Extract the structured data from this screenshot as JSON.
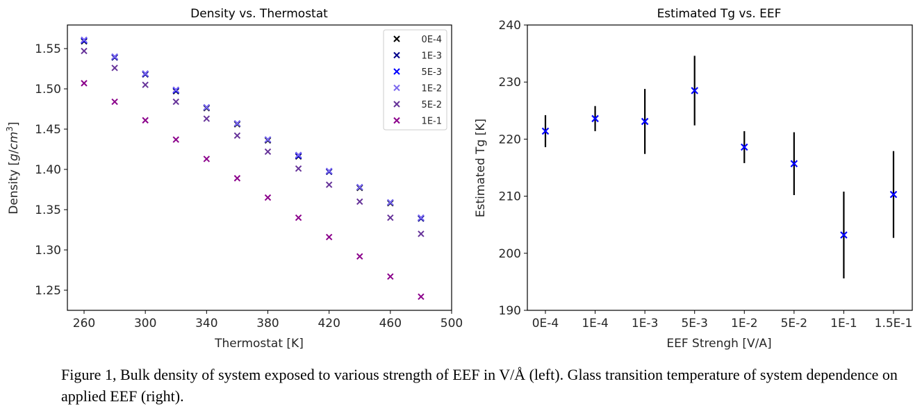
{
  "chart_data": [
    {
      "type": "scatter",
      "title": "Density vs. Thermostat",
      "xlabel": "Thermostat [K]",
      "ylabel": "Density [g/cm³]",
      "xlim": [
        250,
        500
      ],
      "ylim": [
        1.225,
        1.58
      ],
      "xticks": [
        260,
        300,
        340,
        380,
        420,
        460,
        500
      ],
      "yticks": [
        1.25,
        1.3,
        1.35,
        1.4,
        1.45,
        1.5,
        1.55
      ],
      "ytick_labels": [
        "1.25",
        "1.30",
        "1.35",
        "1.40",
        "1.45",
        "1.50",
        "1.55"
      ],
      "legend_position": "top-right",
      "marker": "x",
      "x": [
        260,
        280,
        300,
        320,
        340,
        360,
        380,
        400,
        420,
        440,
        460,
        480
      ],
      "series": [
        {
          "name": "0E-4",
          "color": "#000000",
          "values": [
            1.559,
            1.539,
            1.518,
            1.497,
            1.476,
            1.456,
            1.436,
            1.416,
            1.397,
            1.377,
            1.358,
            1.339
          ]
        },
        {
          "name": "1E-3",
          "color": "#00008b",
          "values": [
            1.56,
            1.539,
            1.518,
            1.498,
            1.477,
            1.457,
            1.437,
            1.417,
            1.397,
            1.378,
            1.359,
            1.339
          ]
        },
        {
          "name": "5E-3",
          "color": "#0000ff",
          "values": [
            1.56,
            1.54,
            1.519,
            1.498,
            1.477,
            1.457,
            1.437,
            1.417,
            1.398,
            1.378,
            1.359,
            1.34
          ]
        },
        {
          "name": "1E-2",
          "color": "#7b68ee",
          "values": [
            1.561,
            1.54,
            1.519,
            1.499,
            1.477,
            1.457,
            1.437,
            1.418,
            1.398,
            1.378,
            1.359,
            1.34
          ]
        },
        {
          "name": "5E-2",
          "color": "#663399",
          "values": [
            1.547,
            1.526,
            1.505,
            1.484,
            1.463,
            1.442,
            1.422,
            1.401,
            1.381,
            1.36,
            1.34,
            1.32
          ]
        },
        {
          "name": "1E-1",
          "color": "#8b008b",
          "values": [
            1.507,
            1.484,
            1.461,
            1.437,
            1.413,
            1.389,
            1.365,
            1.34,
            1.316,
            1.292,
            1.267,
            1.242
          ]
        }
      ]
    },
    {
      "type": "scatter",
      "subtype": "errorbar",
      "title": "Estimated Tg vs. EEF",
      "xlabel": "EEF Strengh [V/A]",
      "ylabel": "Estimated Tg [K]",
      "ylim": [
        190,
        240
      ],
      "yticks": [
        190,
        200,
        210,
        220,
        230,
        240
      ],
      "categories": [
        "0E-4",
        "1E-4",
        "1E-3",
        "5E-3",
        "1E-2",
        "5E-2",
        "1E-1",
        "1.5E-1"
      ],
      "marker": "x",
      "marker_color": "#0000ff",
      "errorbar_color": "#000000",
      "values": [
        221.4,
        223.6,
        223.1,
        228.5,
        218.6,
        215.7,
        203.2,
        210.3
      ],
      "errors": [
        2.8,
        2.2,
        5.7,
        6.1,
        2.8,
        5.5,
        7.6,
        7.6
      ]
    }
  ],
  "caption": "Figure 1, Bulk density of system exposed to various strength of EEF in V/Å (left). Glass transition temperature of system dependence on applied EEF (right)."
}
